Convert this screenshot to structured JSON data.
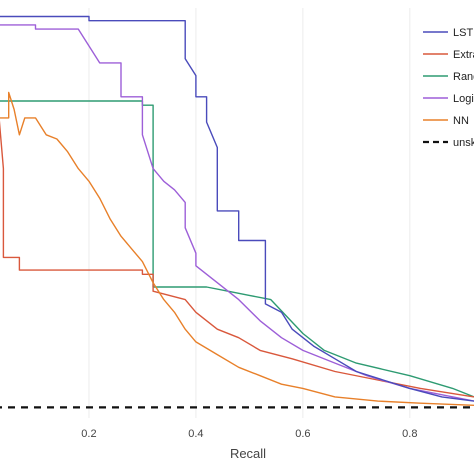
{
  "chart_data": {
    "type": "line",
    "title": "",
    "xlabel": "Recall",
    "ylabel": "",
    "xlim": [
      0,
      0.92
    ],
    "ylim": [
      0.05,
      1.02
    ],
    "x_ticks": [
      0.2,
      0.4,
      0.6,
      0.8
    ],
    "x_tick_labels": [
      "0.2",
      "0.4",
      "0.6",
      "0.8"
    ],
    "grid": true,
    "legend_position": "top-right",
    "series": [
      {
        "name": "LSTM",
        "color": "#4a4bbb",
        "dash": "solid",
        "points": [
          [
            0.0,
            1.0
          ],
          [
            0.2,
            1.0
          ],
          [
            0.2,
            0.99
          ],
          [
            0.38,
            0.99
          ],
          [
            0.38,
            0.9
          ],
          [
            0.4,
            0.86
          ],
          [
            0.4,
            0.81
          ],
          [
            0.42,
            0.81
          ],
          [
            0.42,
            0.75
          ],
          [
            0.44,
            0.69
          ],
          [
            0.44,
            0.54
          ],
          [
            0.48,
            0.54
          ],
          [
            0.48,
            0.47
          ],
          [
            0.53,
            0.47
          ],
          [
            0.53,
            0.32
          ],
          [
            0.56,
            0.3
          ],
          [
            0.58,
            0.26
          ],
          [
            0.62,
            0.22
          ],
          [
            0.66,
            0.19
          ],
          [
            0.7,
            0.16
          ],
          [
            0.75,
            0.14
          ],
          [
            0.8,
            0.12
          ],
          [
            0.86,
            0.1
          ],
          [
            0.92,
            0.09
          ]
        ]
      },
      {
        "name": "Extra Trees",
        "color": "#d9583c",
        "dash": "solid",
        "points": [
          [
            0.03,
            0.79
          ],
          [
            0.04,
            0.64
          ],
          [
            0.04,
            0.43
          ],
          [
            0.07,
            0.43
          ],
          [
            0.07,
            0.4
          ],
          [
            0.18,
            0.4
          ],
          [
            0.3,
            0.4
          ],
          [
            0.3,
            0.39
          ],
          [
            0.32,
            0.39
          ],
          [
            0.32,
            0.35
          ],
          [
            0.38,
            0.33
          ],
          [
            0.4,
            0.3
          ],
          [
            0.44,
            0.26
          ],
          [
            0.48,
            0.24
          ],
          [
            0.52,
            0.21
          ],
          [
            0.58,
            0.19
          ],
          [
            0.66,
            0.16
          ],
          [
            0.74,
            0.14
          ],
          [
            0.82,
            0.12
          ],
          [
            0.92,
            0.1
          ]
        ]
      },
      {
        "name": "Random Forest",
        "color": "#2e9b72",
        "dash": "solid",
        "points": [
          [
            0.0,
            0.8
          ],
          [
            0.3,
            0.8
          ],
          [
            0.3,
            0.79
          ],
          [
            0.32,
            0.79
          ],
          [
            0.32,
            0.36
          ],
          [
            0.42,
            0.36
          ],
          [
            0.46,
            0.35
          ],
          [
            0.5,
            0.34
          ],
          [
            0.54,
            0.33
          ],
          [
            0.6,
            0.25
          ],
          [
            0.64,
            0.21
          ],
          [
            0.7,
            0.18
          ],
          [
            0.8,
            0.15
          ],
          [
            0.88,
            0.12
          ],
          [
            0.92,
            0.1
          ]
        ]
      },
      {
        "name": "Logistic Regression",
        "color": "#9d5fd8",
        "dash": "solid",
        "points": [
          [
            0.0,
            0.93
          ],
          [
            0.03,
            0.98
          ],
          [
            0.1,
            0.98
          ],
          [
            0.1,
            0.97
          ],
          [
            0.18,
            0.97
          ],
          [
            0.2,
            0.93
          ],
          [
            0.22,
            0.89
          ],
          [
            0.26,
            0.89
          ],
          [
            0.26,
            0.81
          ],
          [
            0.3,
            0.81
          ],
          [
            0.3,
            0.72
          ],
          [
            0.32,
            0.64
          ],
          [
            0.34,
            0.61
          ],
          [
            0.36,
            0.59
          ],
          [
            0.38,
            0.56
          ],
          [
            0.38,
            0.5
          ],
          [
            0.4,
            0.44
          ],
          [
            0.4,
            0.41
          ],
          [
            0.44,
            0.37
          ],
          [
            0.48,
            0.33
          ],
          [
            0.52,
            0.28
          ],
          [
            0.56,
            0.24
          ],
          [
            0.6,
            0.21
          ],
          [
            0.66,
            0.18
          ],
          [
            0.72,
            0.15
          ],
          [
            0.8,
            0.12
          ],
          [
            0.92,
            0.09
          ]
        ]
      },
      {
        "name": "NN",
        "color": "#e8802a",
        "dash": "solid",
        "points": [
          [
            0.0,
            0.68
          ],
          [
            0.03,
            0.68
          ],
          [
            0.03,
            0.76
          ],
          [
            0.05,
            0.76
          ],
          [
            0.05,
            0.82
          ],
          [
            0.06,
            0.78
          ],
          [
            0.07,
            0.72
          ],
          [
            0.08,
            0.76
          ],
          [
            0.1,
            0.76
          ],
          [
            0.12,
            0.72
          ],
          [
            0.14,
            0.71
          ],
          [
            0.16,
            0.68
          ],
          [
            0.18,
            0.64
          ],
          [
            0.2,
            0.61
          ],
          [
            0.22,
            0.57
          ],
          [
            0.24,
            0.52
          ],
          [
            0.26,
            0.48
          ],
          [
            0.28,
            0.45
          ],
          [
            0.3,
            0.42
          ],
          [
            0.32,
            0.37
          ],
          [
            0.34,
            0.33
          ],
          [
            0.36,
            0.3
          ],
          [
            0.38,
            0.26
          ],
          [
            0.4,
            0.23
          ],
          [
            0.44,
            0.2
          ],
          [
            0.48,
            0.17
          ],
          [
            0.52,
            0.15
          ],
          [
            0.56,
            0.13
          ],
          [
            0.6,
            0.12
          ],
          [
            0.66,
            0.1
          ],
          [
            0.74,
            0.09
          ],
          [
            0.82,
            0.085
          ],
          [
            0.92,
            0.08
          ]
        ]
      },
      {
        "name": "unskilled",
        "color": "#111111",
        "dash": "dashed",
        "points": [
          [
            0.0,
            0.075
          ],
          [
            0.92,
            0.075
          ]
        ]
      }
    ],
    "legend": {
      "labels": [
        "LSTM",
        "Extra Trees",
        "Random Forest",
        "Logistic Regression",
        "NN",
        "unskilled"
      ]
    }
  }
}
